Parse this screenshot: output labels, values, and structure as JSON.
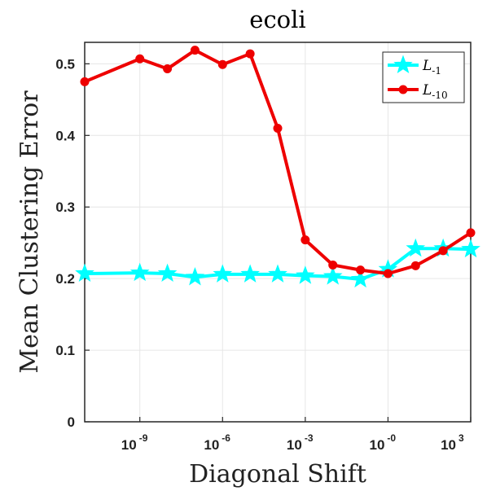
{
  "chart_data": {
    "type": "line",
    "title": "ecoli",
    "xlabel": "Diagonal Shift",
    "ylabel": "Mean Clustering Error",
    "xscale": "log",
    "xlim": [
      1e-11,
      1000
    ],
    "ylim": [
      0,
      0.53
    ],
    "grid": true,
    "legend_position": "top-right",
    "xticks": [
      {
        "base": "10",
        "exp": "-9",
        "value": 1e-09
      },
      {
        "base": "10",
        "exp": "-6",
        "value": 1e-06
      },
      {
        "base": "10",
        "exp": "-3",
        "value": 0.001
      },
      {
        "base": "10",
        "exp": "-0",
        "value": 1
      },
      {
        "base": "10",
        "exp": "3",
        "value": 1000
      }
    ],
    "yticks": [
      "0",
      "0.1",
      "0.2",
      "0.3",
      "0.4",
      "0.5"
    ],
    "x": [
      1e-11,
      1e-09,
      1e-08,
      1e-07,
      1e-06,
      1e-05,
      0.0001,
      0.001,
      0.01,
      0.1,
      1,
      10,
      100,
      1000
    ],
    "series": [
      {
        "name": "L-1",
        "legend_base": "L",
        "legend_sub": "-1",
        "color": "#00ffff",
        "marker": "star",
        "values": [
          0.207,
          0.208,
          0.207,
          0.202,
          0.206,
          0.206,
          0.206,
          0.204,
          0.203,
          0.199,
          0.213,
          0.242,
          0.242,
          0.241
        ]
      },
      {
        "name": "L-10",
        "legend_base": "L",
        "legend_sub": "-10",
        "color": "#ee0000",
        "marker": "circle",
        "values": [
          0.475,
          0.507,
          0.493,
          0.519,
          0.499,
          0.514,
          0.41,
          0.254,
          0.219,
          0.212,
          0.207,
          0.218,
          0.239,
          0.264
        ]
      }
    ]
  }
}
